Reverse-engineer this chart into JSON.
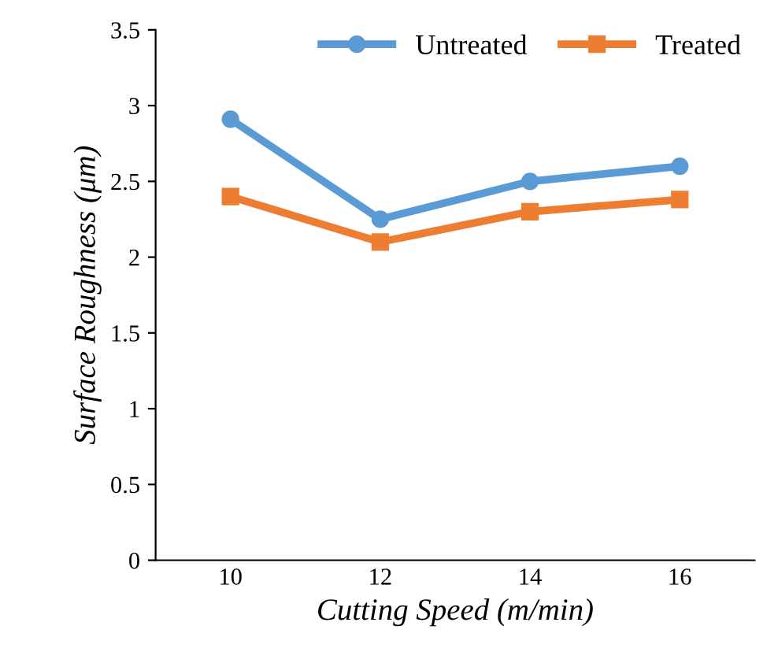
{
  "chart_data": {
    "type": "line",
    "xlabel": "Cutting Speed (m/min)",
    "ylabel": "Surface Roughness (μm)",
    "categories": [
      "10",
      "12",
      "14",
      "16"
    ],
    "series": [
      {
        "name": "Untreated",
        "color": "#5b9bd5",
        "values": [
          2.91,
          2.25,
          2.5,
          2.6
        ],
        "marker": "circle"
      },
      {
        "name": "Treated",
        "color": "#ed7d31",
        "values": [
          2.4,
          2.1,
          2.3,
          2.38
        ],
        "marker": "square"
      }
    ],
    "ylim": [
      0,
      3.5
    ],
    "yticks": [
      0,
      0.5,
      1,
      1.5,
      2,
      2.5,
      3,
      3.5
    ],
    "grid": false,
    "legend": "top right"
  }
}
